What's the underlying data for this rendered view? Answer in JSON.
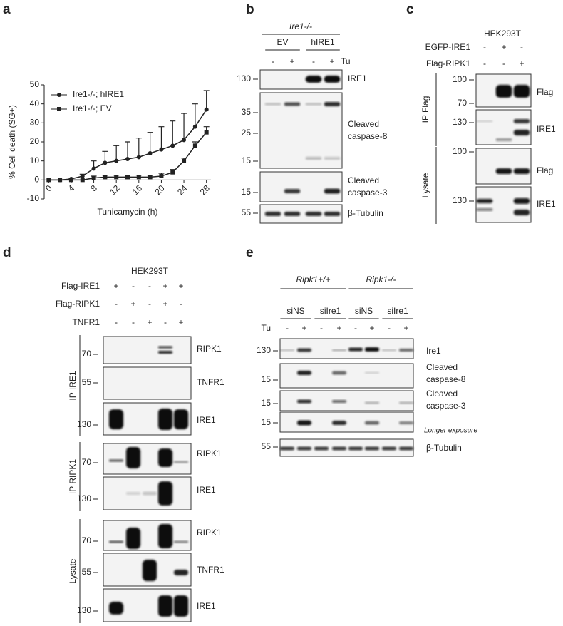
{
  "panel_labels": [
    "a",
    "b",
    "c",
    "d",
    "e"
  ],
  "chart_data": {
    "type": "line",
    "ylabel": "% Cell death (SG+)",
    "xlabel": "Tunicamycin (h)",
    "x": [
      0,
      2,
      4,
      6,
      8,
      10,
      12,
      14,
      16,
      18,
      20,
      22,
      24,
      26,
      28
    ],
    "series": [
      {
        "name": "Ire1-/-; hIRE1",
        "marker": "circle",
        "color": "#222222",
        "values": [
          0,
          0,
          0.5,
          2,
          6,
          9,
          10,
          11,
          12,
          14,
          16,
          18,
          21,
          28,
          37
        ],
        "errors": [
          0,
          0,
          0.5,
          1,
          4,
          6,
          8,
          9,
          10,
          11,
          12,
          13,
          14,
          12,
          10
        ]
      },
      {
        "name": "Ire1-/-; EV",
        "marker": "square",
        "color": "#222222",
        "values": [
          0,
          0,
          0,
          0,
          1,
          1.5,
          1.5,
          1.5,
          1.5,
          1.5,
          2,
          4,
          10,
          18,
          25
        ],
        "errors": [
          0,
          0,
          0,
          0,
          1,
          1,
          1,
          1,
          1,
          1,
          1.5,
          1.5,
          1.5,
          2,
          3
        ]
      }
    ],
    "xlim": [
      -0.8,
      28.8
    ],
    "ylim": [
      -10,
      50
    ],
    "xticks": [
      0,
      4,
      8,
      12,
      16,
      20,
      24,
      28
    ],
    "yticks": [
      -10,
      0,
      10,
      20,
      30,
      40,
      50
    ],
    "legend": "upper left",
    "grid": false
  },
  "blot_panels": [
    {
      "header": "Ire1-/-",
      "groups": [
        "EV",
        "hIRE1"
      ],
      "conditions": [
        {
          "name": "Tu",
          "signs": [
            "-",
            "+",
            "-",
            "+"
          ]
        }
      ],
      "sections": [
        {
          "blots": [
            {
              "markers": [
                130
              ],
              "label": [
                "IRE1"
              ]
            },
            {
              "markers": [
                35,
                25,
                15
              ],
              "label": [
                "Cleaved",
                "caspase-8"
              ]
            },
            {
              "markers": [
                15
              ],
              "label": [
                "Cleaved",
                "caspase-3"
              ]
            },
            {
              "markers": [
                55
              ],
              "label": [
                "β-Tubulin"
              ]
            }
          ]
        }
      ]
    },
    {
      "header": "HEK293T",
      "conditions": [
        {
          "name": "EGFP-IRE1",
          "signs": [
            "-",
            "+",
            "-"
          ]
        },
        {
          "name": "Flag-RIPK1",
          "signs": [
            "-",
            "-",
            "+"
          ]
        }
      ],
      "sections": [
        {
          "name": "IP Flag",
          "blots": [
            {
              "markers": [
                100,
                70
              ],
              "label": [
                "Flag"
              ]
            },
            {
              "markers": [
                130
              ],
              "label": [
                "IRE1"
              ]
            }
          ]
        },
        {
          "name": "Lysate",
          "blots": [
            {
              "markers": [
                100
              ],
              "label": [
                "Flag"
              ]
            },
            {
              "markers": [
                130
              ],
              "label": [
                "IRE1"
              ]
            }
          ]
        }
      ]
    },
    {
      "header": "HEK293T",
      "conditions": [
        {
          "name": "Flag-IRE1",
          "signs": [
            "+",
            "-",
            "-",
            "+",
            "+"
          ]
        },
        {
          "name": "Flag-RIPK1",
          "signs": [
            "-",
            "+",
            "-",
            "+",
            "-"
          ]
        },
        {
          "name": "TNFR1",
          "signs": [
            "-",
            "-",
            "+",
            "-",
            "+"
          ]
        }
      ],
      "sections": [
        {
          "name": "IP IRE1",
          "blots": [
            {
              "markers": [
                70
              ],
              "label": [
                "RIPK1"
              ]
            },
            {
              "markers": [
                55
              ],
              "label": [
                "TNFR1"
              ]
            },
            {
              "markers": [
                130
              ],
              "label": [
                "IRE1"
              ]
            }
          ]
        },
        {
          "name": "IP RIPK1",
          "blots": [
            {
              "markers": [
                70
              ],
              "label": [
                "RIPK1"
              ]
            },
            {
              "markers": [
                130
              ],
              "label": [
                "IRE1"
              ]
            }
          ]
        },
        {
          "name": "Lysate",
          "blots": [
            {
              "markers": [
                70
              ],
              "label": [
                "RIPK1"
              ]
            },
            {
              "markers": [
                55
              ],
              "label": [
                "TNFR1"
              ]
            },
            {
              "markers": [
                130
              ],
              "label": [
                "IRE1"
              ]
            }
          ]
        }
      ]
    },
    {
      "groups": [
        "Ripk1+/+",
        "Ripk1-/-"
      ],
      "subgroups": [
        "siNS",
        "siIre1",
        "siNS",
        "siIre1"
      ],
      "conditions": [
        {
          "name": "Tu",
          "signs": [
            "-",
            "+",
            "-",
            "+",
            "-",
            "+",
            "-",
            "+"
          ]
        }
      ],
      "sections": [
        {
          "blots": [
            {
              "markers": [
                130
              ],
              "label": [
                "Ire1"
              ]
            },
            {
              "markers": [
                15
              ],
              "label": [
                "Cleaved",
                "caspase-8"
              ]
            },
            {
              "markers": [
                15
              ],
              "label": [
                "Cleaved",
                "caspase-3"
              ]
            },
            {
              "markers": [
                15
              ],
              "note": "Longer exposure"
            },
            {
              "markers": [
                55
              ],
              "label": [
                "β-Tubulin"
              ]
            }
          ]
        }
      ]
    }
  ]
}
